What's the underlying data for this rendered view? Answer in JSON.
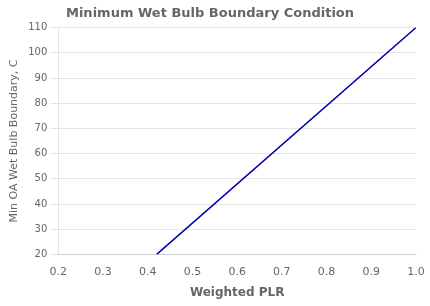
{
  "chart_data": {
    "type": "line",
    "title": "Minimum Wet Bulb Boundary Condition",
    "xlabel": "Weighted PLR",
    "ylabel": "Min OA Wet Bulb Boundary, C",
    "x": [
      0.42,
      1.0
    ],
    "values": [
      20,
      110
    ],
    "color": "#0000AA",
    "xlim": [
      0.2,
      1.0
    ],
    "ylim": [
      20,
      110
    ],
    "xticks": [
      0.2,
      0.3,
      0.4,
      0.5,
      0.6,
      0.7,
      0.8,
      0.9,
      {
        "value": 1.0,
        "label": "1.0"
      }
    ],
    "yticks": [
      20,
      30,
      40,
      50,
      60,
      70,
      80,
      90,
      100,
      110
    ],
    "grid": "y"
  }
}
